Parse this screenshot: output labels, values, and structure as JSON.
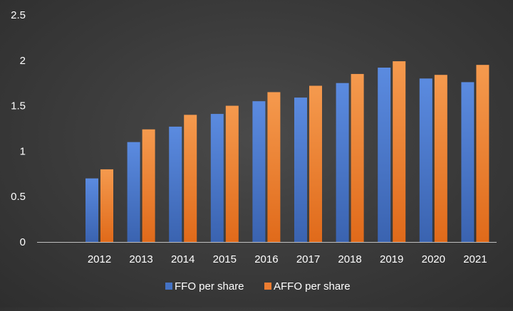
{
  "chart_data": {
    "type": "bar",
    "categories": [
      "2012",
      "2013",
      "2014",
      "2015",
      "2016",
      "2017",
      "2018",
      "2019",
      "2020",
      "2021"
    ],
    "series": [
      {
        "name": "FFO per share",
        "values": [
          0.7,
          1.1,
          1.27,
          1.41,
          1.55,
          1.59,
          1.75,
          1.92,
          1.8,
          1.76
        ],
        "color": "#4472c4"
      },
      {
        "name": "AFFO per share",
        "values": [
          0.8,
          1.24,
          1.4,
          1.5,
          1.65,
          1.72,
          1.85,
          1.99,
          1.84,
          1.95
        ],
        "color": "#ed7d31"
      }
    ],
    "ylim": [
      0,
      2.5
    ],
    "yticks": [
      "0",
      "0.5",
      "1",
      "1.5",
      "2",
      "2.5"
    ],
    "grid": false,
    "legend": "bottom",
    "axis_color": "#bfbfbf",
    "text_color": "#ffffff"
  }
}
